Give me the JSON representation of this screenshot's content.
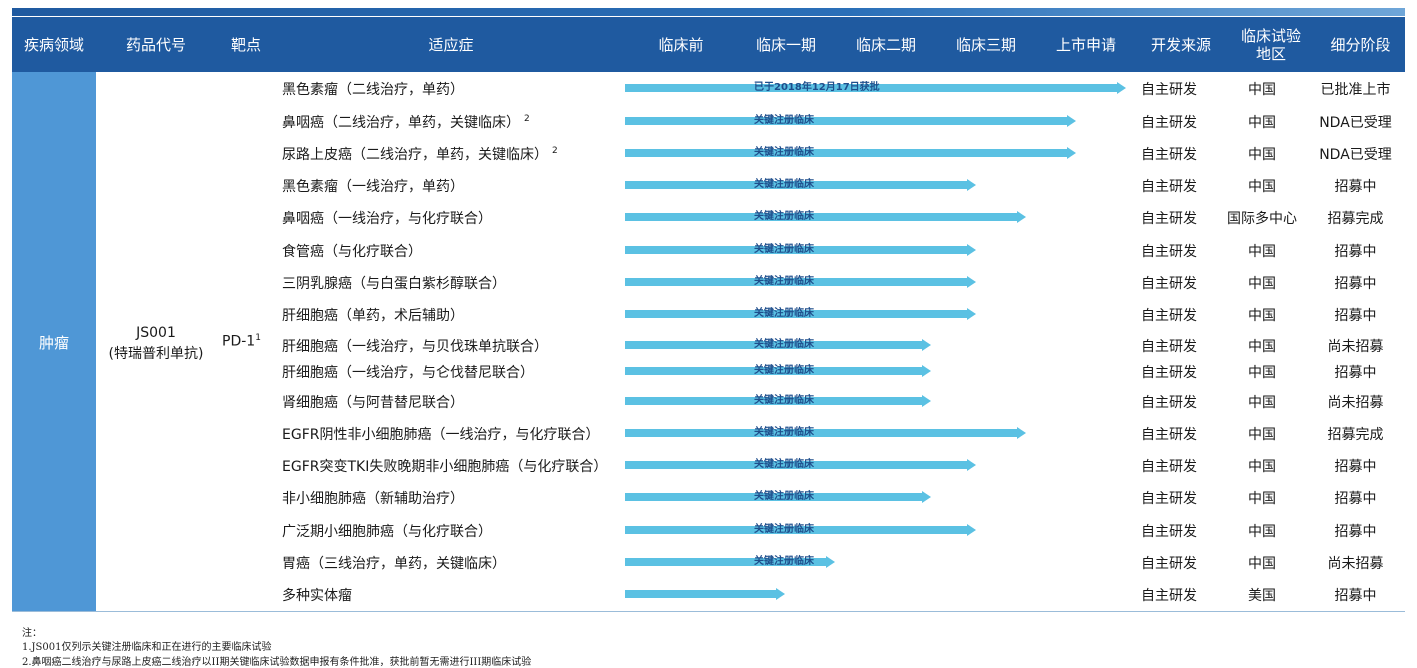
{
  "header": {
    "disease_area": "疾病领域",
    "drug_code": "药品代号",
    "target": "靶点",
    "indication": "适应症",
    "preclinical": "临床前",
    "phase1": "临床一期",
    "phase2": "临床二期",
    "phase3": "临床三期",
    "nda": "上市申请",
    "source": "开发来源",
    "region_line1": "临床试验",
    "region_line2": "地区",
    "stage": "细分阶段"
  },
  "left": {
    "disease": "肿瘤",
    "drug_code_line1": "JS001",
    "drug_code_line2": "(特瑞普利单抗)",
    "target": "PD-1",
    "target_sup": "1"
  },
  "rows": [
    {
      "indication": "黑色素瘤（二线治疗，单药）",
      "sup": "",
      "progress": 1.0,
      "bar_label": "已于2018年12月17日获批",
      "source": "自主研发",
      "region": "中国",
      "stage": "已批准上市"
    },
    {
      "indication": "鼻咽癌（二线治疗，单药，关键临床）",
      "sup": "2",
      "progress": 0.9,
      "bar_label": "关键注册临床",
      "source": "自主研发",
      "region": "中国",
      "stage": "NDA已受理"
    },
    {
      "indication": "尿路上皮癌（二线治疗，单药，关键临床）",
      "sup": "2",
      "progress": 0.9,
      "bar_label": "关键注册临床",
      "source": "自主研发",
      "region": "中国",
      "stage": "NDA已受理"
    },
    {
      "indication": "黑色素瘤（一线治疗，单药）",
      "sup": "",
      "progress": 0.7,
      "bar_label": "关键注册临床",
      "source": "自主研发",
      "region": "中国",
      "stage": "招募中"
    },
    {
      "indication": "鼻咽癌（一线治疗，与化疗联合）",
      "sup": "",
      "progress": 0.8,
      "bar_label": "关键注册临床",
      "source": "自主研发",
      "region": "国际多中心",
      "stage": "招募完成"
    },
    {
      "indication": "食管癌（与化疗联合）",
      "sup": "",
      "progress": 0.7,
      "bar_label": "关键注册临床",
      "source": "自主研发",
      "region": "中国",
      "stage": "招募中"
    },
    {
      "indication": "三阴乳腺癌（与白蛋白紫杉醇联合）",
      "sup": "",
      "progress": 0.7,
      "bar_label": "关键注册临床",
      "source": "自主研发",
      "region": "中国",
      "stage": "招募中"
    },
    {
      "indication": "肝细胞癌（单药，术后辅助）",
      "sup": "",
      "progress": 0.7,
      "bar_label": "关键注册临床",
      "source": "自主研发",
      "region": "中国",
      "stage": "招募中"
    },
    {
      "indication": "肝细胞癌（一线治疗，与贝伐珠单抗联合）",
      "sup": "",
      "progress": 0.61,
      "bar_label": "关键注册临床",
      "source": "自主研发",
      "region": "中国",
      "stage": "尚未招募"
    },
    {
      "indication": "肝细胞癌（一线治疗，与仑伐替尼联合）",
      "sup": "",
      "progress": 0.61,
      "bar_label": "关键注册临床",
      "source": "自主研发",
      "region": "中国",
      "stage": "招募中"
    },
    {
      "indication": "肾细胞癌（与阿昔替尼联合）",
      "sup": "",
      "progress": 0.61,
      "bar_label": "关键注册临床",
      "source": "自主研发",
      "region": "中国",
      "stage": "尚未招募"
    },
    {
      "indication": "EGFR阴性非小细胞肺癌（一线治疗，与化疗联合）",
      "sup": "",
      "progress": 0.8,
      "bar_label": "关键注册临床",
      "source": "自主研发",
      "region": "中国",
      "stage": "招募完成"
    },
    {
      "indication": "EGFR突变TKI失败晚期非小细胞肺癌（与化疗联合）",
      "sup": "",
      "progress": 0.7,
      "bar_label": "关键注册临床",
      "source": "自主研发",
      "region": "中国",
      "stage": "招募中"
    },
    {
      "indication": "非小细胞肺癌（新辅助治疗）",
      "sup": "",
      "progress": 0.61,
      "bar_label": "关键注册临床",
      "source": "自主研发",
      "region": "中国",
      "stage": "招募中"
    },
    {
      "indication": "广泛期小细胞肺癌（与化疗联合）",
      "sup": "",
      "progress": 0.7,
      "bar_label": "关键注册临床",
      "source": "自主研发",
      "region": "中国",
      "stage": "招募中"
    },
    {
      "indication": "胃癌（三线治疗，单药，关键临床）",
      "sup": "",
      "progress": 0.42,
      "bar_label": "关键注册临床",
      "source": "自主研发",
      "region": "中国",
      "stage": "尚未招募"
    },
    {
      "indication": "多种实体瘤",
      "sup": "",
      "progress": 0.32,
      "bar_label": "",
      "source": "自主研发",
      "region": "美国",
      "stage": "招募中"
    }
  ],
  "notes": {
    "title": "注：",
    "line1": "1.JS001仅列示关键注册临床和正在进行的主要临床试验",
    "line2": "2.鼻咽癌二线治疗与尿路上皮癌二线治疗以II期关键临床试验数据申报有条件批准，获批前暂无需进行III期临床试验"
  },
  "colors": {
    "header_bg": "#1f5aa0",
    "left_col_bg": "#4f97d6",
    "bar": "#5bc1e3"
  }
}
